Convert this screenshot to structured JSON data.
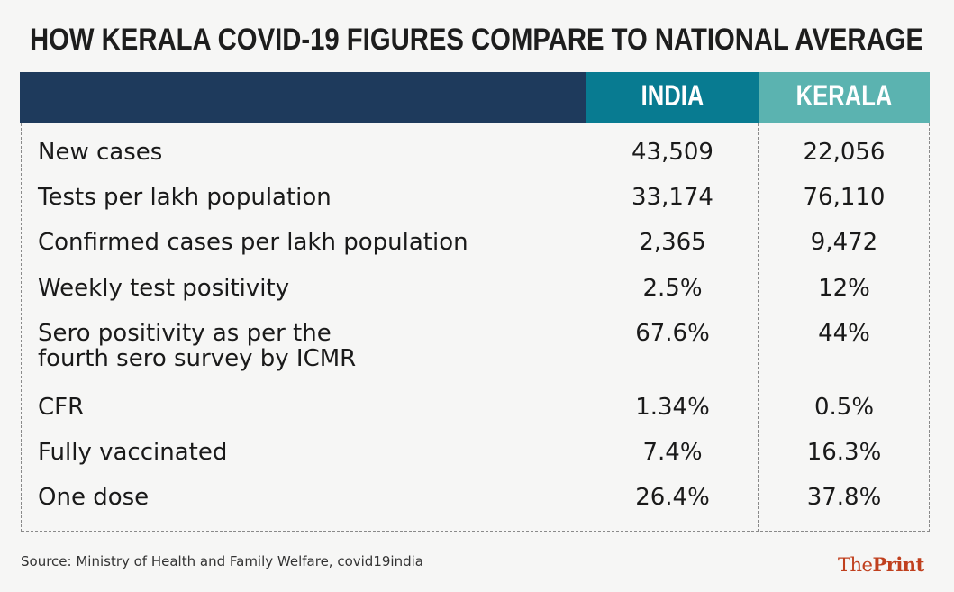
{
  "title": "HOW KERALA COVID-19 FIGURES COMPARE TO NATIONAL AVERAGE",
  "colors": {
    "header_dark": "#1e3a5c",
    "india": "#087b91",
    "kerala": "#5bb3b0",
    "logo": "#c0401e"
  },
  "chart_data": {
    "type": "table",
    "title": "HOW KERALA COVID-19 FIGURES COMPARE TO NATIONAL AVERAGE",
    "columns": [
      "",
      "INDIA",
      "KERALA"
    ],
    "rows": [
      {
        "label": "New cases",
        "india": "43,509",
        "kerala": "22,056"
      },
      {
        "label": "Tests per lakh population",
        "india": "33,174",
        "kerala": "76,110"
      },
      {
        "label": "Confirmed cases per lakh population",
        "india": "2,365",
        "kerala": "9,472"
      },
      {
        "label": "Weekly test positivity",
        "india": "2.5%",
        "kerala": "12%"
      },
      {
        "label": "Sero positivity as per the",
        "label2": "fourth sero survey by ICMR",
        "india": "67.6%",
        "kerala": "44%"
      },
      {
        "label": "CFR",
        "india": "1.34%",
        "kerala": "0.5%"
      },
      {
        "label": "Fully vaccinated",
        "india": "7.4%",
        "kerala": "16.3%"
      },
      {
        "label": "One dose",
        "india": "26.4%",
        "kerala": "37.8%"
      }
    ]
  },
  "source": "Source: Ministry of Health and Family Welfare, covid19india",
  "logo": {
    "part1": "The",
    "part2": "Print"
  }
}
